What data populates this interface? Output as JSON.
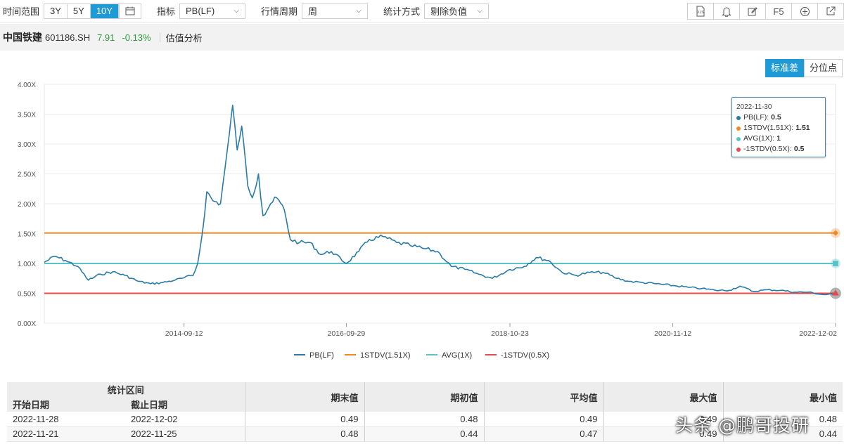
{
  "toolbar": {
    "range_label": "时间范围",
    "range_options": [
      "3Y",
      "5Y",
      "10Y"
    ],
    "range_active": "10Y",
    "metric_label": "指标",
    "metric_value": "PB(LF)",
    "period_label": "行情周期",
    "period_value": "周",
    "stat_label": "统计方式",
    "stat_value": "剔除负值",
    "icons": [
      "xls-export-icon",
      "bell-icon",
      "edit-icon",
      "F5",
      "plus-circle-icon",
      "open-external-icon"
    ],
    "xls_text": "XLS",
    "f5_text": "F5"
  },
  "title": {
    "name": "中国铁建",
    "code": "601186.SH",
    "price": "7.91",
    "change": "-0.13%",
    "section": "估值分析"
  },
  "modes": [
    "标准差",
    "分位点"
  ],
  "mode_active": "标准差",
  "colors": {
    "pb": "#2a7ba6",
    "stdv_up": "#f08a24",
    "avg": "#5bc3c7",
    "stdv_down": "#e9484c",
    "accent": "#1e9bd7"
  },
  "chart_data": {
    "type": "line",
    "ylim": [
      0,
      4
    ],
    "yticks": [
      "0.00X",
      "0.50X",
      "1.00X",
      "1.50X",
      "2.00X",
      "2.50X",
      "3.00X",
      "3.50X",
      "4.00X"
    ],
    "xticks": [
      "2014-09-12",
      "2016-09-29",
      "2018-10-23",
      "2020-11-12",
      "2022-12-02"
    ],
    "x_range": [
      "2012-12-07",
      "2022-12-02"
    ],
    "series": [
      {
        "name": "PB(LF)",
        "points": [
          [
            "2012-12-07",
            1.02
          ],
          [
            "2013-01-25",
            1.12
          ],
          [
            "2013-03-15",
            1.05
          ],
          [
            "2013-05-10",
            0.95
          ],
          [
            "2013-06-28",
            0.72
          ],
          [
            "2013-08-23",
            0.82
          ],
          [
            "2013-10-18",
            0.86
          ],
          [
            "2013-12-13",
            0.8
          ],
          [
            "2014-02-14",
            0.7
          ],
          [
            "2014-04-11",
            0.66
          ],
          [
            "2014-06-06",
            0.68
          ],
          [
            "2014-08-01",
            0.72
          ],
          [
            "2014-09-12",
            0.76
          ],
          [
            "2014-10-24",
            0.8
          ],
          [
            "2014-11-14",
            1.0
          ],
          [
            "2014-12-05",
            1.5
          ],
          [
            "2014-12-26",
            2.2
          ],
          [
            "2015-01-23",
            2.05
          ],
          [
            "2015-02-27",
            2.0
          ],
          [
            "2015-03-20",
            2.6
          ],
          [
            "2015-04-10",
            3.2
          ],
          [
            "2015-04-24",
            3.65
          ],
          [
            "2015-05-15",
            2.9
          ],
          [
            "2015-06-05",
            3.3
          ],
          [
            "2015-07-03",
            2.3
          ],
          [
            "2015-07-24",
            2.1
          ],
          [
            "2015-08-21",
            2.5
          ],
          [
            "2015-09-11",
            1.8
          ],
          [
            "2015-10-16",
            2.0
          ],
          [
            "2015-11-13",
            2.1
          ],
          [
            "2015-12-18",
            1.9
          ],
          [
            "2016-01-15",
            1.4
          ],
          [
            "2016-02-26",
            1.35
          ],
          [
            "2016-04-15",
            1.35
          ],
          [
            "2016-06-03",
            1.15
          ],
          [
            "2016-07-22",
            1.2
          ],
          [
            "2016-09-29",
            1.0
          ],
          [
            "2016-11-25",
            1.2
          ],
          [
            "2017-01-13",
            1.4
          ],
          [
            "2017-03-17",
            1.45
          ],
          [
            "2017-05-19",
            1.35
          ],
          [
            "2017-07-21",
            1.3
          ],
          [
            "2017-09-22",
            1.25
          ],
          [
            "2017-11-24",
            1.2
          ],
          [
            "2018-01-26",
            0.95
          ],
          [
            "2018-03-30",
            0.9
          ],
          [
            "2018-06-01",
            0.82
          ],
          [
            "2018-08-03",
            0.75
          ],
          [
            "2018-10-23",
            0.9
          ],
          [
            "2018-12-28",
            0.95
          ],
          [
            "2019-02-22",
            1.1
          ],
          [
            "2019-04-19",
            1.05
          ],
          [
            "2019-06-21",
            0.85
          ],
          [
            "2019-08-23",
            0.8
          ],
          [
            "2019-10-25",
            0.85
          ],
          [
            "2019-12-27",
            0.85
          ],
          [
            "2020-02-28",
            0.75
          ],
          [
            "2020-04-24",
            0.7
          ],
          [
            "2020-06-26",
            0.68
          ],
          [
            "2020-08-28",
            0.66
          ],
          [
            "2020-11-12",
            0.63
          ],
          [
            "2021-01-22",
            0.6
          ],
          [
            "2021-03-26",
            0.58
          ],
          [
            "2021-05-28",
            0.55
          ],
          [
            "2021-07-30",
            0.55
          ],
          [
            "2021-09-17",
            0.62
          ],
          [
            "2021-11-19",
            0.53
          ],
          [
            "2022-01-21",
            0.56
          ],
          [
            "2022-03-25",
            0.55
          ],
          [
            "2022-05-27",
            0.52
          ],
          [
            "2022-07-29",
            0.52
          ],
          [
            "2022-09-30",
            0.48
          ],
          [
            "2022-11-25",
            0.48
          ],
          [
            "2022-12-02",
            0.49
          ]
        ]
      },
      {
        "name": "1STDV(1.51X)",
        "value": 1.51
      },
      {
        "name": "AVG(1X)",
        "value": 1.0
      },
      {
        "name": "-1STDV(0.5X)",
        "value": 0.5
      }
    ],
    "legend": [
      "PB(LF)",
      "1STDV(1.51X)",
      "AVG(1X)",
      "-1STDV(0.5X)"
    ],
    "legend_position": "bottom"
  },
  "tooltip": {
    "date": "2022-11-30",
    "rows": [
      {
        "label": "PB(LF):",
        "value": "0.5"
      },
      {
        "label": "1STDV(1.51X):",
        "value": "1.51"
      },
      {
        "label": "AVG(1X):",
        "value": "1"
      },
      {
        "label": "-1STDV(0.5X):",
        "value": "0.5"
      }
    ]
  },
  "table": {
    "group_header": "统计区间",
    "headers": [
      "开始日期",
      "截止日期",
      "期末值",
      "期初值",
      "平均值",
      "最大值",
      "最小值"
    ],
    "rows": [
      [
        "2022-11-28",
        "2022-12-02",
        "0.49",
        "0.48",
        "0.49",
        "0.49",
        "0.48"
      ],
      [
        "2022-11-21",
        "2022-11-25",
        "0.48",
        "0.44",
        "0.47",
        "0.49",
        "0.44"
      ]
    ]
  },
  "watermark": "头条 @鹏哥投研"
}
